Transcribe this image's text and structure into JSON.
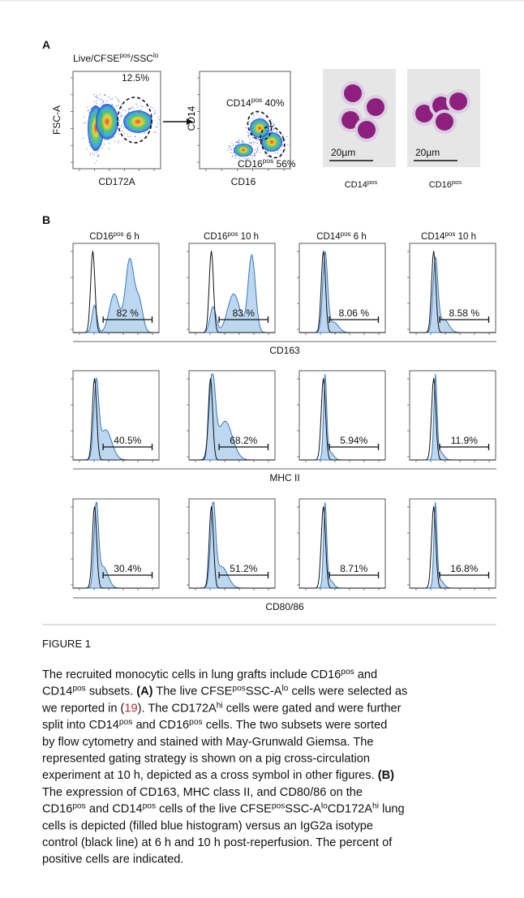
{
  "panel_a": {
    "label": "A",
    "gate_title": [
      {
        "text": "Live/CFSE"
      },
      {
        "text": "pos",
        "style": "sup"
      },
      {
        "text": "/SSC"
      },
      {
        "text": "lo",
        "style": "sup"
      }
    ],
    "plot1": {
      "y_label": "FSC-A",
      "x_label": "CD172A",
      "gate": "12.5%"
    },
    "plot2": {
      "y_label": "CD14",
      "x_label": "CD16",
      "gates": [
        [
          {
            "text": "CD14"
          },
          {
            "text": "pos",
            "style": "sup"
          },
          {
            "text": " 40%"
          }
        ],
        [
          {
            "text": "CD16"
          },
          {
            "text": "pos",
            "style": "sup"
          },
          {
            "text": " 56%"
          }
        ]
      ]
    },
    "micrographs": [
      {
        "scale": "20µm",
        "label": [
          {
            "text": "CD14"
          },
          {
            "text": "pos",
            "style": "sup"
          }
        ]
      },
      {
        "scale": "20µm",
        "label": [
          {
            "text": "CD16"
          },
          {
            "text": "pos",
            "style": "sup"
          }
        ]
      }
    ]
  },
  "panel_b": {
    "label": "B",
    "columns": [
      [
        {
          "text": "CD16"
        },
        {
          "text": "pos",
          "style": "sup"
        },
        {
          "text": " 6 h"
        }
      ],
      [
        {
          "text": "CD16"
        },
        {
          "text": "pos",
          "style": "sup"
        },
        {
          "text": " 10 h"
        }
      ],
      [
        {
          "text": "CD14"
        },
        {
          "text": "pos",
          "style": "sup"
        },
        {
          "text": " 6 h"
        }
      ],
      [
        {
          "text": "CD14"
        },
        {
          "text": "pos",
          "style": "sup"
        },
        {
          "text": " 10 h"
        }
      ]
    ],
    "rows": [
      {
        "marker": "CD163",
        "percents": [
          "82 %",
          "83 %",
          "8.06 %",
          "8.58 %"
        ]
      },
      {
        "marker": "MHC II",
        "percents": [
          "40.5%",
          "68.2%",
          "5.94%",
          "11.9%"
        ]
      },
      {
        "marker": "CD80/86",
        "percents": [
          "30.4%",
          "51.2%",
          "8.71%",
          "16.8%"
        ]
      }
    ]
  },
  "caption": {
    "title": "FIGURE 1",
    "lines": [
      [
        {
          "text": "The recruited monocytic cells in lung grafts include CD16"
        },
        {
          "text": "pos",
          "style": "sup"
        },
        {
          "text": " and"
        }
      ],
      [
        {
          "text": "CD14"
        },
        {
          "text": "pos",
          "style": "sup"
        },
        {
          "text": " subsets. "
        },
        {
          "text": "(A)",
          "style": "bold"
        },
        {
          "text": " The live CFSE"
        },
        {
          "text": "pos",
          "style": "sup"
        },
        {
          "text": "SSC-A"
        },
        {
          "text": "lo",
          "style": "sup"
        },
        {
          "text": " cells were selected as"
        }
      ],
      [
        {
          "text": "we reported in ("
        },
        {
          "text": "19",
          "style": "link"
        },
        {
          "text": "). The CD172A"
        },
        {
          "text": "hi",
          "style": "sup"
        },
        {
          "text": " cells were gated and were further"
        }
      ],
      [
        {
          "text": "split into CD14"
        },
        {
          "text": "pos",
          "style": "sup"
        },
        {
          "text": " and CD16"
        },
        {
          "text": "pos",
          "style": "sup"
        },
        {
          "text": " cells. The two subsets were sorted"
        }
      ],
      [
        {
          "text": "by flow cytometry and stained with May-Grunwald Giemsa. The"
        }
      ],
      [
        {
          "text": "represented gating strategy is shown on a pig cross-circulation"
        }
      ],
      [
        {
          "text": "experiment at 10 h, depicted as a cross symbol in other figures. "
        },
        {
          "text": "(B)",
          "style": "bold"
        }
      ],
      [
        {
          "text": "The expression of CD163, MHC class II, and CD80/86 on the"
        }
      ],
      [
        {
          "text": "CD16"
        },
        {
          "text": "pos",
          "style": "sup"
        },
        {
          "text": " and CD14"
        },
        {
          "text": "pos",
          "style": "sup"
        },
        {
          "text": " cells of the live CFSE"
        },
        {
          "text": "pos",
          "style": "sup"
        },
        {
          "text": "SSC-A"
        },
        {
          "text": "lo",
          "style": "sup"
        },
        {
          "text": "CD172A"
        },
        {
          "text": "hi",
          "style": "sup"
        },
        {
          "text": " lung"
        }
      ],
      [
        {
          "text": "cells is depicted (filled blue histogram) versus an IgG2a isotype"
        }
      ],
      [
        {
          "text": "control (black line) at 6 h and 10 h post-reperfusion. The percent of"
        }
      ],
      [
        {
          "text": "positive cells are indicated."
        }
      ]
    ]
  }
}
